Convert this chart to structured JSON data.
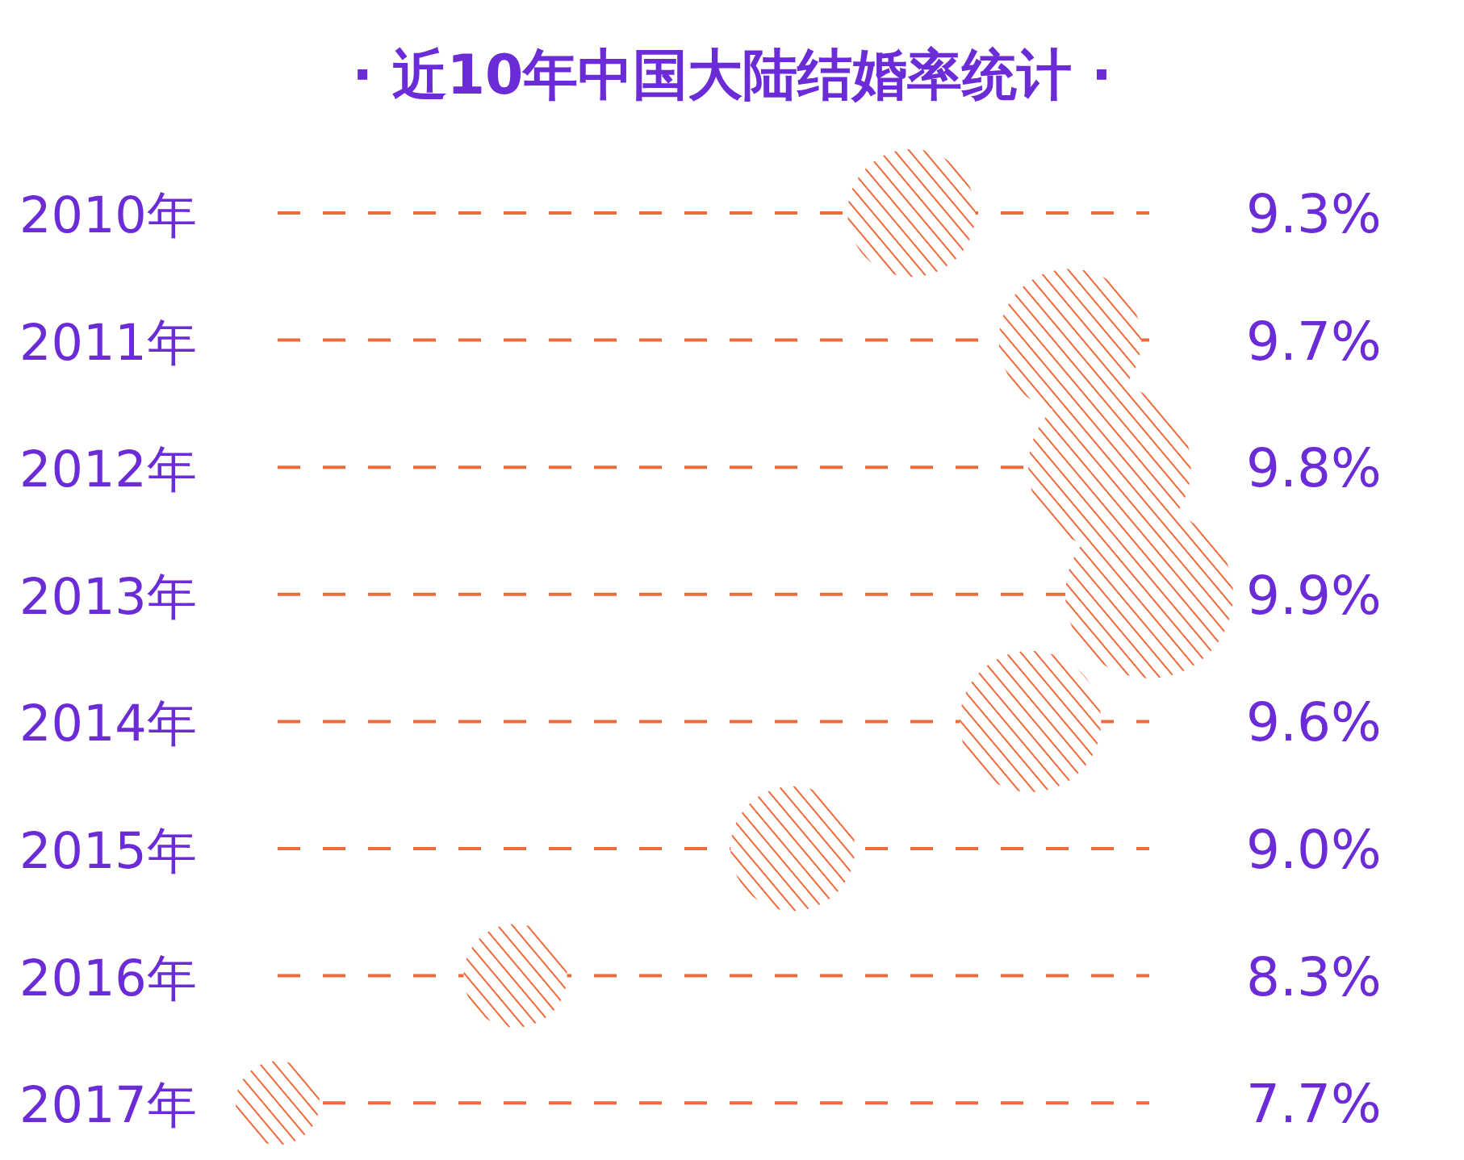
{
  "chart_data": {
    "type": "bubble",
    "title": "· 近10年中国大陆结婚率统计 ·",
    "orientation": "horizontal",
    "categories": [
      "2010年",
      "2011年",
      "2012年",
      "2013年",
      "2014年",
      "2015年",
      "2016年",
      "2017年"
    ],
    "values": [
      9.3,
      9.7,
      9.8,
      9.9,
      9.6,
      9.0,
      8.3,
      7.7
    ],
    "sizes": [
      0.58,
      0.72,
      0.94,
      1,
      0.71,
      0.55,
      0.38,
      0.25
    ],
    "value_labels": [
      "9.3%",
      "9.7%",
      "9.8%",
      "9.9%",
      "9.6%",
      "9.0%",
      "8.3%",
      "7.7%"
    ],
    "color": "#ef6a3a",
    "tick_labels": false,
    "grid": "y"
  }
}
